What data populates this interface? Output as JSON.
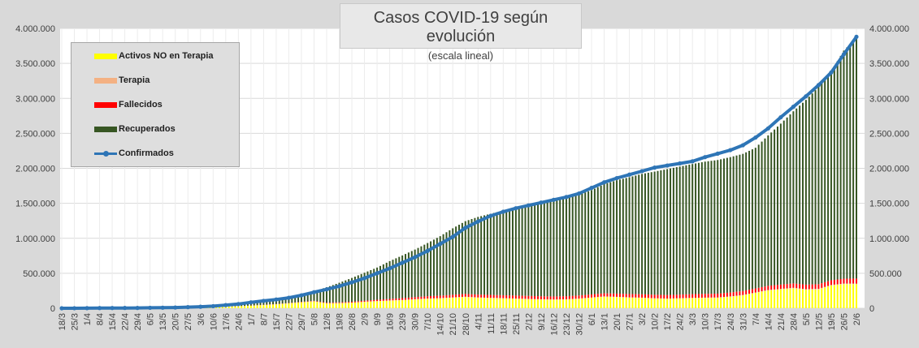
{
  "chart_data": {
    "type": "area",
    "title": "Casos COVID-19 según evolución",
    "subtitle": "(escala lineal)",
    "ylim": [
      0,
      4000000
    ],
    "y_ticks": [
      "0",
      "500.000",
      "1.000.000",
      "1.500.000",
      "2.000.000",
      "2.500.000",
      "3.000.000",
      "3.500.000",
      "4.000.000"
    ],
    "categories": [
      "18/3",
      "25/3",
      "1/4",
      "8/4",
      "15/4",
      "22/4",
      "29/4",
      "6/5",
      "13/5",
      "20/5",
      "27/5",
      "3/6",
      "10/6",
      "17/6",
      "24/6",
      "1/7",
      "8/7",
      "15/7",
      "22/7",
      "29/7",
      "5/8",
      "12/8",
      "19/8",
      "26/8",
      "2/9",
      "9/9",
      "16/9",
      "23/9",
      "30/9",
      "7/10",
      "14/10",
      "21/10",
      "28/10",
      "4/11",
      "11/11",
      "18/11",
      "25/11",
      "2/12",
      "9/12",
      "16/12",
      "23/12",
      "30/12",
      "6/1",
      "13/1",
      "20/1",
      "27/1",
      "3/2",
      "10/2",
      "17/2",
      "24/2",
      "3/3",
      "10/3",
      "17/3",
      "24/3",
      "31/3",
      "7/4",
      "14/4",
      "21/4",
      "28/4",
      "5/5",
      "12/5",
      "19/5",
      "26/5",
      "2/6"
    ],
    "series": [
      {
        "name": "Activos NO en Terapia",
        "color": "#ffff00",
        "values": [
          50,
          200,
          900,
          1500,
          1800,
          2000,
          2700,
          3200,
          5000,
          6000,
          9000,
          12000,
          16000,
          22000,
          28000,
          36000,
          46000,
          56000,
          70000,
          85000,
          98000,
          70000,
          72000,
          78000,
          90000,
          100000,
          108000,
          115000,
          125000,
          135000,
          140000,
          150000,
          160000,
          150000,
          145000,
          140000,
          135000,
          130000,
          125000,
          122000,
          125000,
          135000,
          150000,
          165000,
          160000,
          152000,
          148000,
          140000,
          135000,
          140000,
          145000,
          148000,
          150000,
          165000,
          185000,
          220000,
          255000,
          270000,
          285000,
          265000,
          270000,
          325000,
          345000,
          345000
        ]
      },
      {
        "name": "Terapia",
        "color": "#f4b183",
        "values": [
          5,
          20,
          60,
          90,
          100,
          110,
          120,
          120,
          130,
          150,
          200,
          250,
          320,
          420,
          550,
          700,
          900,
          1100,
          1400,
          1700,
          1900,
          2100,
          2300,
          2600,
          2900,
          3200,
          3500,
          3700,
          3900,
          4100,
          4300,
          4500,
          4700,
          4500,
          4200,
          4000,
          3800,
          3600,
          3500,
          3400,
          3400,
          3500,
          3600,
          3700,
          3600,
          3500,
          3400,
          3300,
          3300,
          3400,
          3500,
          3600,
          3800,
          4000,
          4500,
          5000,
          5500,
          6500,
          7000,
          7500,
          7500,
          7800,
          7800,
          7500
        ]
      },
      {
        "name": "Fallecidos",
        "color": "#ff0000",
        "values": [
          2,
          20,
          60,
          80,
          100,
          150,
          200,
          300,
          350,
          450,
          550,
          700,
          900,
          1200,
          1600,
          2100,
          2700,
          3400,
          4200,
          5200,
          6400,
          8000,
          10000,
          12500,
          15000,
          18500,
          22000,
          26000,
          30000,
          33000,
          36000,
          38000,
          40000,
          41000,
          41500,
          42000,
          42500,
          42800,
          43000,
          43300,
          43600,
          44000,
          44500,
          45000,
          46000,
          47500,
          49000,
          50000,
          51000,
          52000,
          53000,
          54000,
          55000,
          56000,
          57000,
          58500,
          60000,
          62000,
          63000,
          65000,
          66500,
          68000,
          70000,
          72000
        ]
      },
      {
        "name": "Recuperados",
        "color": "#375623",
        "values": [
          20,
          80,
          300,
          900,
          1500,
          2000,
          2300,
          3500,
          4500,
          5500,
          8000,
          11000,
          16000,
          22000,
          32000,
          43000,
          57000,
          70000,
          90000,
          110000,
          138000,
          220000,
          280000,
          340000,
          400000,
          460000,
          540000,
          610000,
          680000,
          760000,
          850000,
          950000,
          1040000,
          1110000,
          1160000,
          1210000,
          1260000,
          1300000,
          1330000,
          1360000,
          1400000,
          1440000,
          1490000,
          1560000,
          1620000,
          1670000,
          1720000,
          1760000,
          1800000,
          1830000,
          1860000,
          1890000,
          1910000,
          1935000,
          1960000,
          2010000,
          2150000,
          2300000,
          2460000,
          2640000,
          2820000,
          2980000,
          3260000,
          3440000
        ]
      },
      {
        "name": "Confirmados",
        "color": "#2e75b6",
        "values": [
          80,
          400,
          1500,
          2500,
          3300,
          4000,
          4600,
          6500,
          8000,
          10000,
          16000,
          22000,
          30000,
          45000,
          60000,
          85000,
          105000,
          125000,
          150000,
          185000,
          230000,
          270000,
          315000,
          370000,
          430000,
          500000,
          570000,
          650000,
          730000,
          820000,
          920000,
          1020000,
          1150000,
          1240000,
          1320000,
          1380000,
          1430000,
          1470000,
          1510000,
          1550000,
          1590000,
          1640000,
          1720000,
          1800000,
          1860000,
          1910000,
          1960000,
          2010000,
          2040000,
          2070000,
          2100000,
          2160000,
          2210000,
          2260000,
          2330000,
          2440000,
          2570000,
          2730000,
          2880000,
          3030000,
          3190000,
          3370000,
          3630000,
          3880000
        ]
      }
    ]
  }
}
